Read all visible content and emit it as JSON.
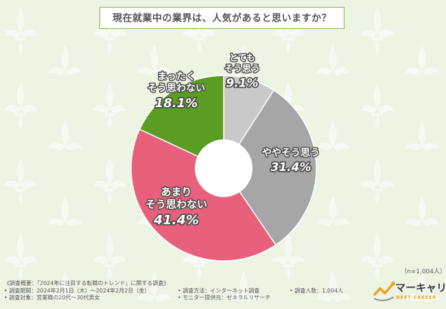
{
  "header": {
    "question": "現在就業中の業界は、人気があると思いますか？"
  },
  "chart_data": {
    "type": "pie",
    "variant": "donut",
    "start": "12 o'clock, clockwise",
    "slices": [
      {
        "label_lines": [
          "とても",
          "そう思う"
        ],
        "value": 9.1,
        "value_label": "9.1%",
        "color": "#c9c9c9"
      },
      {
        "label_lines": [
          "ややそう思う"
        ],
        "value": 31.4,
        "value_label": "31.4%",
        "color": "#a6a6a6"
      },
      {
        "label_lines": [
          "あまり",
          "そう思わない"
        ],
        "value": 41.4,
        "value_label": "41.4%",
        "color": "#e8607c"
      },
      {
        "label_lines": [
          "まったく",
          "そう思わない"
        ],
        "value": 18.1,
        "value_label": "18.1%",
        "color": "#5a9d22"
      }
    ]
  },
  "sample_note": "（n=1,004人）",
  "footer": {
    "overview": "《調査概要：「2024年に注目する転職のトレンド」に関する調査》",
    "period": "• 調査期間：2024年2月1日（木）～2024年2月2日（金）",
    "method": "• 調査方法：インターネット調査",
    "count": "• 調査人数：1,004人",
    "target": "• 調査対象：営業職の20代～30代男女",
    "provider": "• モニター提供元：ゼネラルリサーチ"
  },
  "logo": {
    "name": "マーキャリ",
    "sub": "NEXT CAREER"
  },
  "colors": {
    "background": "#eef4e4",
    "title_border": "#7fb23c",
    "logo_accent": "#f0a020"
  }
}
